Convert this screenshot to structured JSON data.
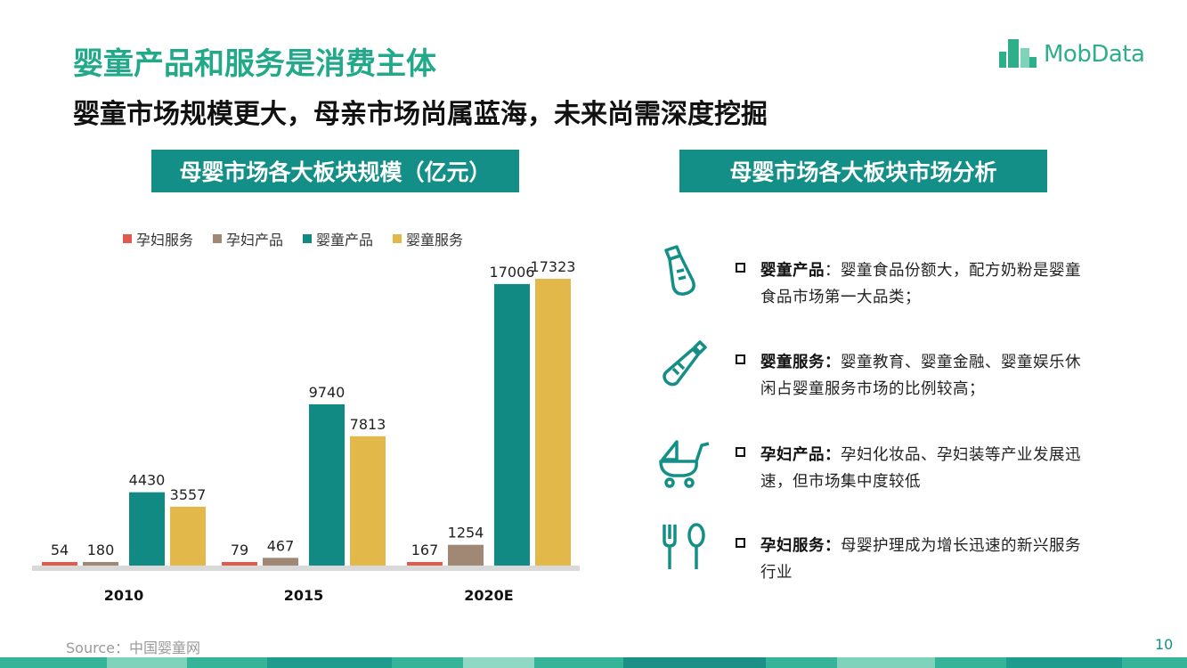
{
  "title": "婴童产品和服务是消费主体",
  "subtitle": "婴童市场规模更大，母亲市场尚属蓝海，未来尚需深度挖掘",
  "logo_text": "MobData",
  "left_header": "母婴市场各大板块规模（亿元）",
  "right_header": "母婴市场各大板块市场分析",
  "colors": {
    "accent": "#22a98a",
    "header_bg": "#148f87",
    "series1": "#e05a4e",
    "series2": "#a08875",
    "series3": "#128a84",
    "series4": "#e3b84b"
  },
  "chart_data": {
    "type": "bar",
    "title": "母婴市场各大板块规模（亿元）",
    "categories": [
      "2010",
      "2015",
      "2020E"
    ],
    "series": [
      {
        "name": "孕妇服务",
        "values": [
          54,
          79,
          167
        ]
      },
      {
        "name": "孕妇产品",
        "values": [
          180,
          467,
          1254
        ]
      },
      {
        "name": "婴童产品",
        "values": [
          4430,
          9740,
          17006
        ]
      },
      {
        "name": "婴童服务",
        "values": [
          3557,
          7813,
          17323
        ]
      }
    ],
    "legend_position": "top",
    "grid": false
  },
  "points": [
    {
      "icon": "baby-bottle-icon",
      "label": "婴童产品",
      "text": "：婴童食品份额大，配方奶粉是婴童食品市场第一大品类；"
    },
    {
      "icon": "feeding-bottle-icon",
      "label": "婴童服务：",
      "text": "婴童教育、婴童金融、婴童娱乐休闲占婴童服务市场的比例较高；"
    },
    {
      "icon": "stroller-icon",
      "label": "孕妇产品：",
      "text": "孕妇化妆品、孕妇装等产业发展迅速，但市场集中度较低"
    },
    {
      "icon": "fork-spoon-icon",
      "label": "孕妇服务：",
      "text": "母婴护理成为增长迅速的新兴服务行业"
    }
  ],
  "source": "Source：中国婴童网",
  "page_number": "10"
}
